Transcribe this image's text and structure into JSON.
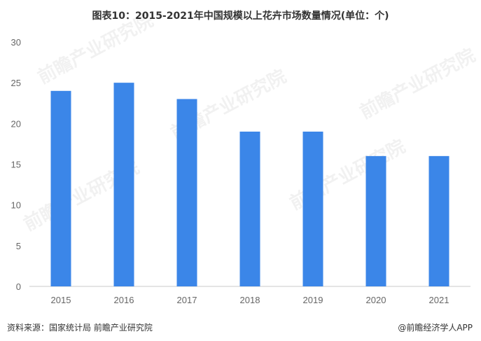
{
  "title": "图表10：2015-2021年中国规模以上花卉市场数量情况(单位：个)",
  "watermark": "前瞻产业研究院",
  "footer": {
    "source": "资料来源：国家统计局 前瞻产业研究院",
    "brand": "@前瞻经济学人APP"
  },
  "colors": {
    "bar": "#3b86e8",
    "axis": "#c8c8c8",
    "text": "#666666"
  },
  "chart_data": {
    "type": "bar",
    "title": "图表10：2015-2021年中国规模以上花卉市场数量情况(单位：个)",
    "xlabel": "",
    "ylabel": "",
    "categories": [
      "2015",
      "2016",
      "2017",
      "2018",
      "2019",
      "2020",
      "2021"
    ],
    "values": [
      24,
      25,
      23,
      19,
      19,
      16,
      16
    ],
    "ylim": [
      0,
      30
    ],
    "yticks": [
      0,
      5,
      10,
      15,
      20,
      25,
      30
    ],
    "grid": false,
    "legend": "none"
  }
}
